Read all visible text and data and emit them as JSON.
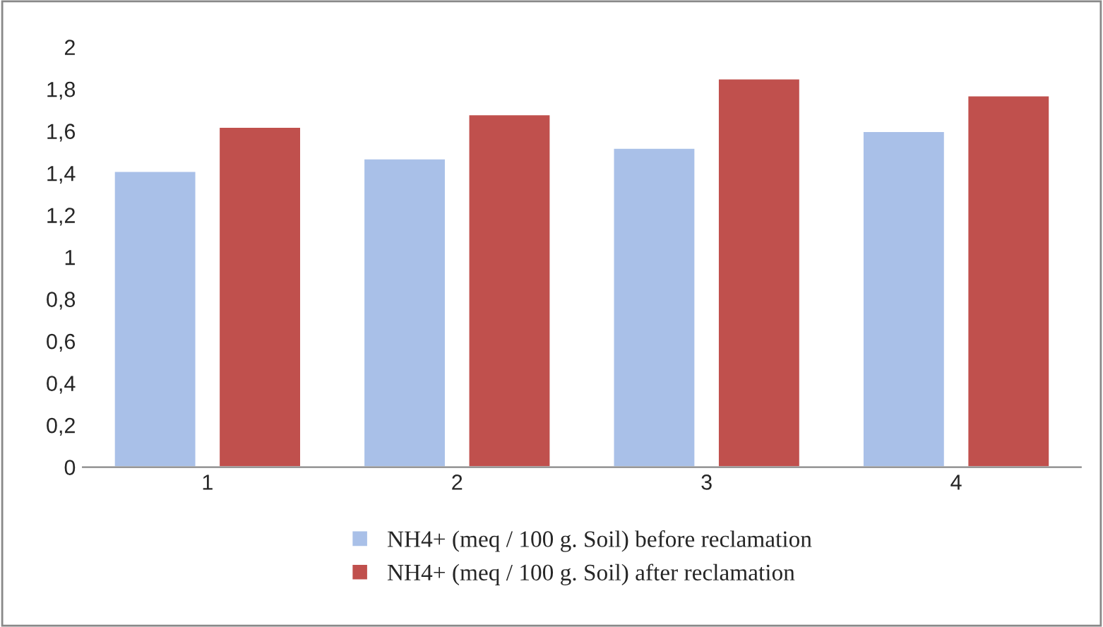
{
  "chart_data": {
    "type": "bar",
    "categories": [
      "1",
      "2",
      "3",
      "4"
    ],
    "series": [
      {
        "name": "NH4+ (meq / 100 g. Soil) before reclamation",
        "color": "#a9c0e8",
        "values": [
          1.41,
          1.47,
          1.52,
          1.6
        ]
      },
      {
        "name": "NH4+ (meq / 100 g. Soil) after reclamation",
        "color": "#c0504d",
        "values": [
          1.62,
          1.68,
          1.85,
          1.77
        ]
      }
    ],
    "ylim": [
      0,
      2
    ],
    "yticks": [
      0,
      {
        "value": 0.2,
        "label": "0,2"
      },
      {
        "value": 0.4,
        "label": "0,4"
      },
      {
        "value": 0.6,
        "label": "0,6"
      },
      {
        "value": 0.8,
        "label": "0,8"
      },
      1,
      {
        "value": 1.2,
        "label": "1,2"
      },
      {
        "value": 1.4,
        "label": "1,4"
      },
      {
        "value": 1.6,
        "label": "1,6"
      },
      {
        "value": 1.8,
        "label": "1,8"
      },
      2
    ],
    "grid": false,
    "legend": "bottom"
  }
}
